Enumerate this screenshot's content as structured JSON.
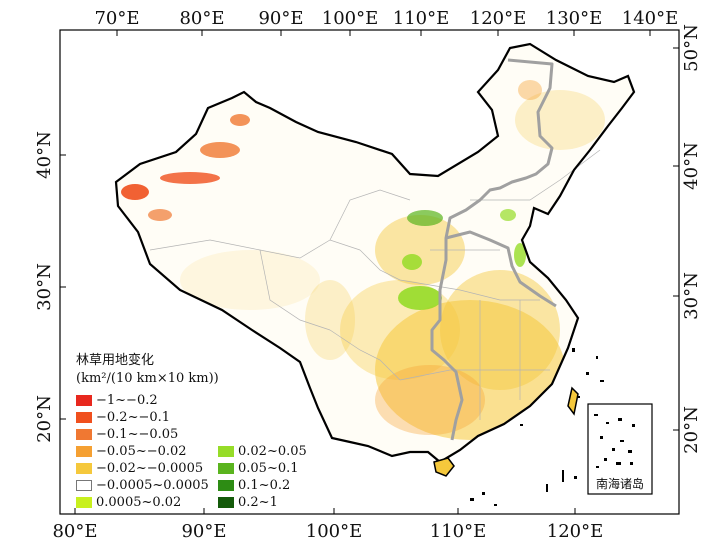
{
  "top_ticks": [
    "70°E",
    "80°E",
    "90°E",
    "100°E",
    "110°E",
    "120°E",
    "130°E",
    "140°E"
  ],
  "bottom_ticks": [
    "80°E",
    "90°E",
    "100°E",
    "110°E",
    "120°E"
  ],
  "left_ticks": [
    "40°N",
    "30°N",
    "20°N"
  ],
  "right_ticks": [
    "50°N",
    "40°N",
    "30°N",
    "20°N"
  ],
  "legend": {
    "title": "林草用地变化",
    "unit": "(km²/(10 km×10 km))",
    "items_left": [
      {
        "label": "−1~−0.2",
        "color": "#e8281e"
      },
      {
        "label": "−0.2~−0.1",
        "color": "#f0501e"
      },
      {
        "label": "−0.1~−0.05",
        "color": "#f07832"
      },
      {
        "label": "−0.05~−0.02",
        "color": "#f5a032"
      },
      {
        "label": "−0.02~−0.0005",
        "color": "#f5c83c"
      },
      {
        "label": "−0.0005~0.0005",
        "color": "#ffffff"
      },
      {
        "label": "0.0005~0.02",
        "color": "#c8f01e"
      }
    ],
    "items_right": [
      {
        "label": "0.02~0.05",
        "color": "#96dc28"
      },
      {
        "label": "0.05~0.1",
        "color": "#5ab41e"
      },
      {
        "label": "0.1~0.2",
        "color": "#2d8c14"
      },
      {
        "label": "0.2~1",
        "color": "#145a0a"
      }
    ]
  },
  "inset_label": "南海诸岛",
  "colors": {
    "border": "#000000",
    "regional_boundary": "#a0a0a0",
    "province_line": "#b4b4b4"
  }
}
